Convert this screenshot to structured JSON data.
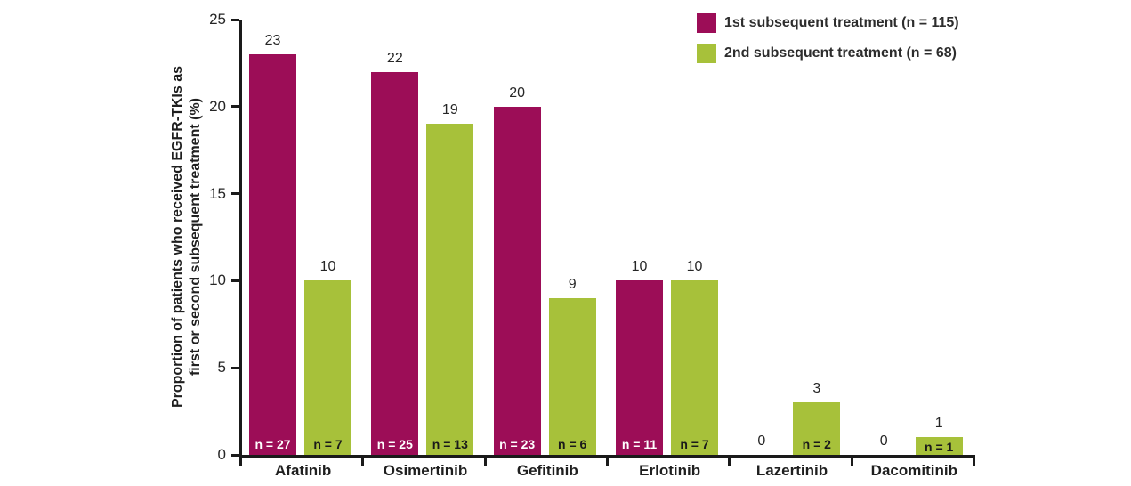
{
  "chart_data": {
    "type": "bar",
    "title": "",
    "ylabel_line1": "Proportion of patients who received EGFR-TKIs as",
    "ylabel_line2": "first or second subsequent treatment (%)",
    "categories": [
      "Afatinib",
      "Osimertinib",
      "Gefitinib",
      "Erlotinib",
      "Lazertinib",
      "Dacomitinib"
    ],
    "series": [
      {
        "name": "1st subsequent treatment (n = 115)",
        "color": "#9C0D57",
        "n_label_color": "#FFFFFF",
        "values": [
          23,
          22,
          20,
          10,
          0,
          0
        ],
        "n_labels": [
          "n = 27",
          "n = 25",
          "n = 23",
          "n = 11",
          "",
          ""
        ]
      },
      {
        "name": "2nd subsequent treatment (n = 68)",
        "color": "#A7C13A",
        "n_label_color": "#1A1A1A",
        "values": [
          10,
          19,
          9,
          10,
          3,
          1
        ],
        "n_labels": [
          "n = 7",
          "n = 13",
          "n = 6",
          "n = 7",
          "n = 2",
          "n = 1"
        ]
      }
    ],
    "y_ticks": [
      0,
      5,
      10,
      15,
      20,
      25
    ],
    "ylim": [
      0,
      25
    ],
    "grid": false,
    "legend_position": "top-right",
    "axis_color": "#1A1A1A"
  }
}
